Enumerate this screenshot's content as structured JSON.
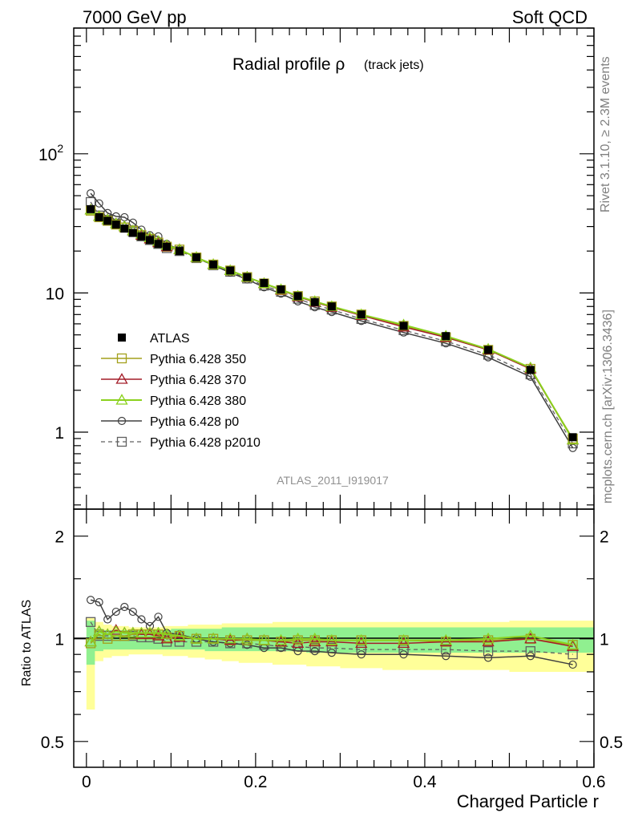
{
  "header": {
    "left": "7000 GeV pp",
    "right": "Soft QCD"
  },
  "side_labels": {
    "top": "Rivet 3.1.10, ≥ 2.3M events",
    "bottom": "mcplots.cern.ch [arXiv:1306.3436]"
  },
  "title": {
    "main": "Radial profile ρ",
    "sub": "(track jets)"
  },
  "watermark": "ATLAS_2011_I919017",
  "colors": {
    "p350": "#a3a01b",
    "p370": "#a41d29",
    "p380": "#8bd11d",
    "p0": "#404040",
    "p2010": "#606060",
    "band_yellow": "#ffff99",
    "band_green": "#90f090"
  },
  "chart_data": [
    {
      "type": "line",
      "panel": "main",
      "ylog": true,
      "xlim": [
        -0.015,
        0.6
      ],
      "ylim": [
        0.28,
        800
      ],
      "ytick_labels": [
        "1",
        "10",
        "10^2"
      ],
      "legend_position": "middle-left",
      "x": [
        0.005,
        0.015,
        0.025,
        0.035,
        0.045,
        0.055,
        0.065,
        0.075,
        0.085,
        0.095,
        0.11,
        0.13,
        0.15,
        0.17,
        0.19,
        0.21,
        0.23,
        0.25,
        0.27,
        0.29,
        0.325,
        0.375,
        0.425,
        0.475,
        0.525,
        0.575
      ],
      "series": [
        {
          "key": "atlas",
          "name": "ATLAS",
          "marker": "filled-square",
          "values": [
            40,
            35,
            33,
            31,
            29,
            27,
            25.5,
            24,
            22.5,
            21.5,
            20,
            18,
            16,
            14.5,
            13,
            11.8,
            10.6,
            9.5,
            8.6,
            8,
            7,
            5.8,
            4.9,
            3.9,
            2.8,
            0.92
          ]
        },
        {
          "key": "p350",
          "name": "Pythia 6.428 350",
          "marker": "open-square",
          "values": [
            39,
            35,
            33,
            31,
            29.5,
            28,
            26,
            24.5,
            23,
            21.5,
            20.5,
            18,
            16,
            14.5,
            13,
            11.7,
            10.5,
            9.5,
            8.7,
            8,
            7,
            5.8,
            4.8,
            3.9,
            2.85,
            0.9
          ]
        },
        {
          "key": "p370",
          "name": "Pythia 6.428 370",
          "marker": "open-triangle",
          "values": [
            39.5,
            35.5,
            33.5,
            31.5,
            30,
            28,
            26,
            24.5,
            23,
            21.5,
            20.5,
            18,
            16,
            14.5,
            13,
            11.7,
            10.5,
            9.4,
            8.6,
            7.9,
            6.9,
            5.7,
            4.8,
            3.9,
            2.85,
            0.88
          ]
        },
        {
          "key": "p380",
          "name": "Pythia 6.428 380",
          "marker": "open-triangle",
          "values": [
            39.5,
            35.5,
            33.5,
            31.5,
            30,
            28,
            26.5,
            25,
            23.5,
            22,
            20.5,
            18,
            16,
            14.5,
            13,
            11.7,
            10.6,
            9.5,
            8.7,
            8,
            7,
            5.9,
            4.9,
            3.95,
            2.9,
            0.88
          ]
        },
        {
          "key": "p0",
          "name": "Pythia 6.428 p0",
          "marker": "open-circle",
          "values": [
            52,
            44,
            37.5,
            35.5,
            35,
            32,
            28.5,
            26,
            25.5,
            22.5,
            20.5,
            18,
            15.8,
            14,
            12.5,
            11,
            9.9,
            8.7,
            7.9,
            7.3,
            6.3,
            5.2,
            4.35,
            3.45,
            2.5,
            0.77
          ]
        },
        {
          "key": "p2010",
          "name": "Pythia 6.428 p2010",
          "marker": "open-square",
          "values": [
            45,
            36,
            33.5,
            31.5,
            29.5,
            27.5,
            25.5,
            24,
            22.5,
            21,
            20,
            17.8,
            15.8,
            14.2,
            12.7,
            11.3,
            10.2,
            9.1,
            8.2,
            7.6,
            6.5,
            5.4,
            4.5,
            3.6,
            2.6,
            0.83
          ]
        }
      ]
    },
    {
      "type": "line",
      "panel": "ratio",
      "ylog": true,
      "ylabel": "Ratio to ATLAS",
      "xlabel": "Charged Particle r",
      "xlim": [
        -0.015,
        0.6
      ],
      "ylim": [
        0.42,
        2.4
      ],
      "xtick_labels": [
        "0",
        "0.2",
        "0.4",
        "0.6"
      ],
      "ytick_labels": [
        "0.5",
        "1",
        "2"
      ],
      "x": [
        0.005,
        0.015,
        0.025,
        0.035,
        0.045,
        0.055,
        0.065,
        0.075,
        0.085,
        0.095,
        0.11,
        0.13,
        0.15,
        0.17,
        0.19,
        0.21,
        0.23,
        0.25,
        0.27,
        0.29,
        0.325,
        0.375,
        0.425,
        0.475,
        0.525,
        0.575
      ],
      "bands": {
        "edges": [
          0,
          0.01,
          0.02,
          0.03,
          0.04,
          0.05,
          0.06,
          0.07,
          0.08,
          0.09,
          0.1,
          0.12,
          0.14,
          0.16,
          0.18,
          0.2,
          0.22,
          0.24,
          0.26,
          0.28,
          0.3,
          0.35,
          0.4,
          0.45,
          0.5,
          0.55,
          0.6
        ],
        "yellow_low": [
          0.62,
          0.86,
          0.88,
          0.89,
          0.89,
          0.9,
          0.9,
          0.9,
          0.9,
          0.89,
          0.89,
          0.88,
          0.87,
          0.86,
          0.85,
          0.85,
          0.84,
          0.84,
          0.83,
          0.83,
          0.82,
          0.81,
          0.81,
          0.81,
          0.8,
          0.8
        ],
        "yellow_high": [
          1.15,
          1.12,
          1.1,
          1.09,
          1.09,
          1.08,
          1.08,
          1.08,
          1.08,
          1.09,
          1.09,
          1.1,
          1.1,
          1.11,
          1.11,
          1.11,
          1.12,
          1.12,
          1.12,
          1.12,
          1.12,
          1.12,
          1.12,
          1.12,
          1.13,
          1.13
        ],
        "green_low": [
          0.84,
          0.92,
          0.93,
          0.93,
          0.93,
          0.93,
          0.93,
          0.93,
          0.93,
          0.93,
          0.93,
          0.93,
          0.92,
          0.92,
          0.92,
          0.92,
          0.92,
          0.92,
          0.91,
          0.91,
          0.91,
          0.91,
          0.91,
          0.91,
          0.91,
          0.91
        ],
        "green_high": [
          1.13,
          1.07,
          1.06,
          1.06,
          1.06,
          1.06,
          1.06,
          1.06,
          1.06,
          1.06,
          1.07,
          1.07,
          1.07,
          1.08,
          1.08,
          1.08,
          1.08,
          1.08,
          1.08,
          1.08,
          1.08,
          1.08,
          1.08,
          1.08,
          1.08,
          1.08
        ]
      },
      "series": [
        {
          "key": "p350",
          "name": "Pythia 6.428 350",
          "marker": "open-square",
          "values": [
            0.97,
            1.03,
            1.0,
            1.02,
            1.02,
            1.03,
            1.03,
            1.03,
            1.03,
            1.01,
            1.02,
            1.0,
            1.0,
            0.99,
            0.99,
            0.99,
            0.98,
            0.99,
            0.99,
            0.99,
            0.99,
            0.99,
            0.98,
            0.99,
            1.0,
            0.96
          ]
        },
        {
          "key": "p370",
          "name": "Pythia 6.428 370",
          "marker": "open-triangle",
          "values": [
            0.98,
            1.05,
            1.03,
            1.06,
            1.04,
            1.04,
            1.03,
            1.03,
            1.02,
            1.0,
            1.01,
            1.0,
            1.0,
            0.99,
            1.0,
            0.99,
            0.98,
            0.97,
            0.98,
            0.98,
            0.97,
            0.97,
            0.98,
            0.98,
            1.0,
            0.95
          ]
        },
        {
          "key": "p380",
          "name": "Pythia 6.428 380",
          "marker": "open-triangle",
          "values": [
            0.98,
            1.05,
            1.03,
            1.05,
            1.04,
            1.04,
            1.04,
            1.04,
            1.04,
            1.03,
            1.02,
            1.0,
            1.0,
            1.0,
            1.0,
            0.99,
            0.99,
            1.0,
            1.0,
            0.99,
            0.99,
            0.99,
            0.99,
            1.0,
            1.02,
            0.96
          ]
        },
        {
          "key": "p0",
          "name": "Pythia 6.428 p0",
          "marker": "open-circle",
          "values": [
            1.3,
            1.28,
            1.14,
            1.2,
            1.24,
            1.2,
            1.14,
            1.09,
            1.16,
            1.04,
            1.03,
            1.0,
            0.98,
            0.97,
            0.96,
            0.94,
            0.94,
            0.92,
            0.92,
            0.91,
            0.9,
            0.9,
            0.89,
            0.88,
            0.89,
            0.84
          ]
        },
        {
          "key": "p2010",
          "name": "Pythia 6.428 p2010",
          "marker": "open-square",
          "values": [
            1.12,
            1.02,
            1.02,
            1.02,
            1.02,
            1.02,
            1.01,
            1.01,
            1.0,
            0.98,
            0.98,
            0.98,
            0.98,
            0.97,
            0.97,
            0.96,
            0.95,
            0.95,
            0.94,
            0.94,
            0.93,
            0.93,
            0.93,
            0.92,
            0.92,
            0.9
          ]
        }
      ]
    }
  ]
}
